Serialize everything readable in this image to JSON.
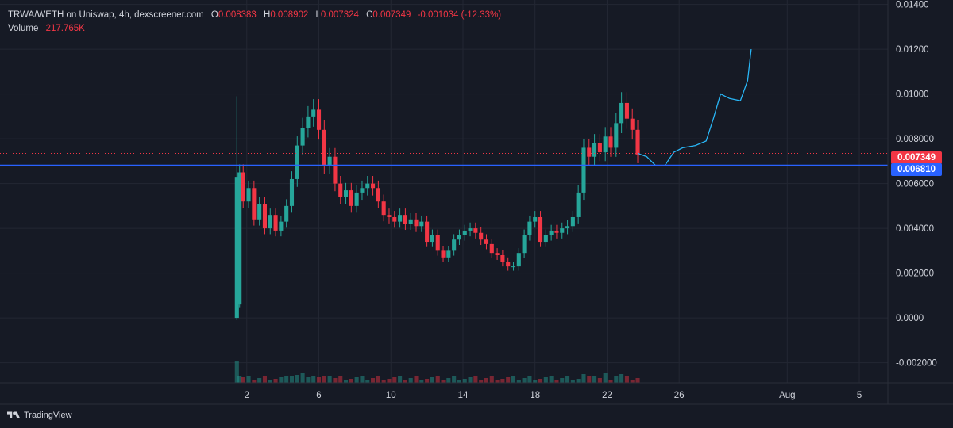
{
  "legend": {
    "title": "TRWA/WETH on Uniswap, 4h, dexscreener.com",
    "o_label": "O",
    "o_value": "0.008383",
    "h_label": "H",
    "h_value": "0.008902",
    "l_label": "L",
    "l_value": "0.007324",
    "c_label": "C",
    "c_value": "0.007349",
    "change": "-0.001034 (-12.33%)",
    "volume_label": "Volume",
    "volume_value": "217.765K"
  },
  "price_tags": {
    "last_price": "0.007349",
    "line_price": "0.006810"
  },
  "brand": {
    "name": "TradingView"
  },
  "colors": {
    "background": "#161a25",
    "up": "#26a69a",
    "down": "#f23645",
    "grid": "#232733",
    "hline": "#2962ff",
    "projection": "#29b6f6",
    "axis_text": "#d1d4dc"
  },
  "chart_data": {
    "type": "candlestick",
    "y_axis_ticks": [
      "0.01400",
      "0.01200",
      "0.01000",
      "0.008000",
      "0.006000",
      "0.004000",
      "0.002000",
      "0.0000",
      "-0.002000"
    ],
    "y_axis_tick_values": [
      0.014,
      0.012,
      0.01,
      0.008,
      0.006,
      0.004,
      0.002,
      0,
      -0.002
    ],
    "ylim": [
      -0.0029,
      0.0142
    ],
    "x_axis_ticks": [
      "2",
      "6",
      "10",
      "14",
      "18",
      "22",
      "26",
      "Aug",
      "5"
    ],
    "x_axis_tick_days": [
      2,
      6,
      10,
      14,
      18,
      22,
      26,
      32,
      36
    ],
    "xlim_days": [
      -11.7,
      41.2
    ],
    "horizontal_line_price": 0.00681,
    "last_close": 0.007349,
    "candles_close_path": [
      {
        "day": 1.5,
        "c": 0.0006
      },
      {
        "day": 1.6,
        "c": 0.0065
      },
      {
        "day": 1.8,
        "c": 0.0052
      },
      {
        "day": 2.1,
        "c": 0.0058
      },
      {
        "day": 2.4,
        "c": 0.0044
      },
      {
        "day": 2.7,
        "c": 0.0051
      },
      {
        "day": 3.0,
        "c": 0.004
      },
      {
        "day": 3.3,
        "c": 0.0046
      },
      {
        "day": 3.6,
        "c": 0.0039
      },
      {
        "day": 3.9,
        "c": 0.0043
      },
      {
        "day": 4.2,
        "c": 0.005
      },
      {
        "day": 4.5,
        "c": 0.0062
      },
      {
        "day": 4.8,
        "c": 0.0077
      },
      {
        "day": 5.1,
        "c": 0.0085
      },
      {
        "day": 5.4,
        "c": 0.009
      },
      {
        "day": 5.7,
        "c": 0.0093
      },
      {
        "day": 6.0,
        "c": 0.0084
      },
      {
        "day": 6.3,
        "c": 0.0068
      },
      {
        "day": 6.6,
        "c": 0.0072
      },
      {
        "day": 6.9,
        "c": 0.006
      },
      {
        "day": 7.2,
        "c": 0.0054
      },
      {
        "day": 7.5,
        "c": 0.0057
      },
      {
        "day": 7.8,
        "c": 0.005
      },
      {
        "day": 8.1,
        "c": 0.0056
      },
      {
        "day": 8.4,
        "c": 0.0058
      },
      {
        "day": 8.7,
        "c": 0.006
      },
      {
        "day": 9.0,
        "c": 0.0058
      },
      {
        "day": 9.3,
        "c": 0.0052
      },
      {
        "day": 9.6,
        "c": 0.0046
      },
      {
        "day": 9.9,
        "c": 0.0045
      },
      {
        "day": 10.2,
        "c": 0.0043
      },
      {
        "day": 10.5,
        "c": 0.0046
      },
      {
        "day": 10.8,
        "c": 0.0042
      },
      {
        "day": 11.1,
        "c": 0.0044
      },
      {
        "day": 11.4,
        "c": 0.0041
      },
      {
        "day": 11.7,
        "c": 0.0043
      },
      {
        "day": 12.0,
        "c": 0.0034
      },
      {
        "day": 12.3,
        "c": 0.0037
      },
      {
        "day": 12.6,
        "c": 0.003
      },
      {
        "day": 12.9,
        "c": 0.0027
      },
      {
        "day": 13.2,
        "c": 0.003
      },
      {
        "day": 13.5,
        "c": 0.0035
      },
      {
        "day": 13.8,
        "c": 0.0037
      },
      {
        "day": 14.1,
        "c": 0.0039
      },
      {
        "day": 14.4,
        "c": 0.004
      },
      {
        "day": 14.7,
        "c": 0.0038
      },
      {
        "day": 15.0,
        "c": 0.0035
      },
      {
        "day": 15.3,
        "c": 0.0033
      },
      {
        "day": 15.6,
        "c": 0.0029
      },
      {
        "day": 15.9,
        "c": 0.0028
      },
      {
        "day": 16.2,
        "c": 0.0025
      },
      {
        "day": 16.5,
        "c": 0.0023
      },
      {
        "day": 16.8,
        "c": 0.0023
      },
      {
        "day": 17.1,
        "c": 0.0029
      },
      {
        "day": 17.4,
        "c": 0.0037
      },
      {
        "day": 17.7,
        "c": 0.0043
      },
      {
        "day": 18.0,
        "c": 0.0045
      },
      {
        "day": 18.3,
        "c": 0.0034
      },
      {
        "day": 18.6,
        "c": 0.0037
      },
      {
        "day": 18.9,
        "c": 0.0039
      },
      {
        "day": 19.2,
        "c": 0.0038
      },
      {
        "day": 19.5,
        "c": 0.004
      },
      {
        "day": 19.8,
        "c": 0.0041
      },
      {
        "day": 20.1,
        "c": 0.0045
      },
      {
        "day": 20.4,
        "c": 0.0056
      },
      {
        "day": 20.7,
        "c": 0.0076
      },
      {
        "day": 21.0,
        "c": 0.0072
      },
      {
        "day": 21.3,
        "c": 0.0078
      },
      {
        "day": 21.6,
        "c": 0.0074
      },
      {
        "day": 21.9,
        "c": 0.0081
      },
      {
        "day": 22.2,
        "c": 0.0076
      },
      {
        "day": 22.5,
        "c": 0.0087
      },
      {
        "day": 22.8,
        "c": 0.0096
      },
      {
        "day": 23.1,
        "c": 0.0089
      },
      {
        "day": 23.4,
        "c": 0.0084
      },
      {
        "day": 23.7,
        "c": 0.0073
      }
    ],
    "projection_path": [
      {
        "day": 23.7,
        "p": 0.00735
      },
      {
        "day": 24.2,
        "p": 0.0072
      },
      {
        "day": 24.7,
        "p": 0.0068
      },
      {
        "day": 25.2,
        "p": 0.0068
      },
      {
        "day": 25.7,
        "p": 0.0074
      },
      {
        "day": 26.2,
        "p": 0.0076
      },
      {
        "day": 26.9,
        "p": 0.0077
      },
      {
        "day": 27.5,
        "p": 0.0079
      },
      {
        "day": 27.9,
        "p": 0.0089
      },
      {
        "day": 28.3,
        "p": 0.01
      },
      {
        "day": 28.8,
        "p": 0.0098
      },
      {
        "day": 29.4,
        "p": 0.0097
      },
      {
        "day": 29.8,
        "p": 0.0106
      },
      {
        "day": 30.0,
        "p": 0.012
      }
    ]
  }
}
